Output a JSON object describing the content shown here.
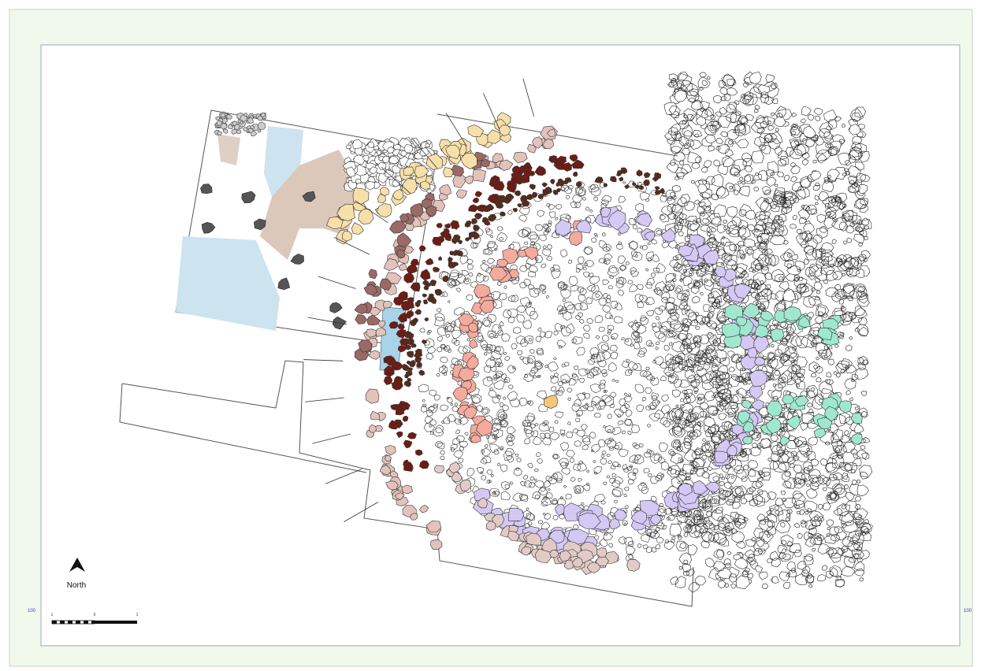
{
  "map": {
    "north_label": "North",
    "scale_bar": {
      "labels": [
        "1",
        "0",
        "1"
      ]
    },
    "grid_labels": {
      "left": "100",
      "right": "100"
    }
  }
}
